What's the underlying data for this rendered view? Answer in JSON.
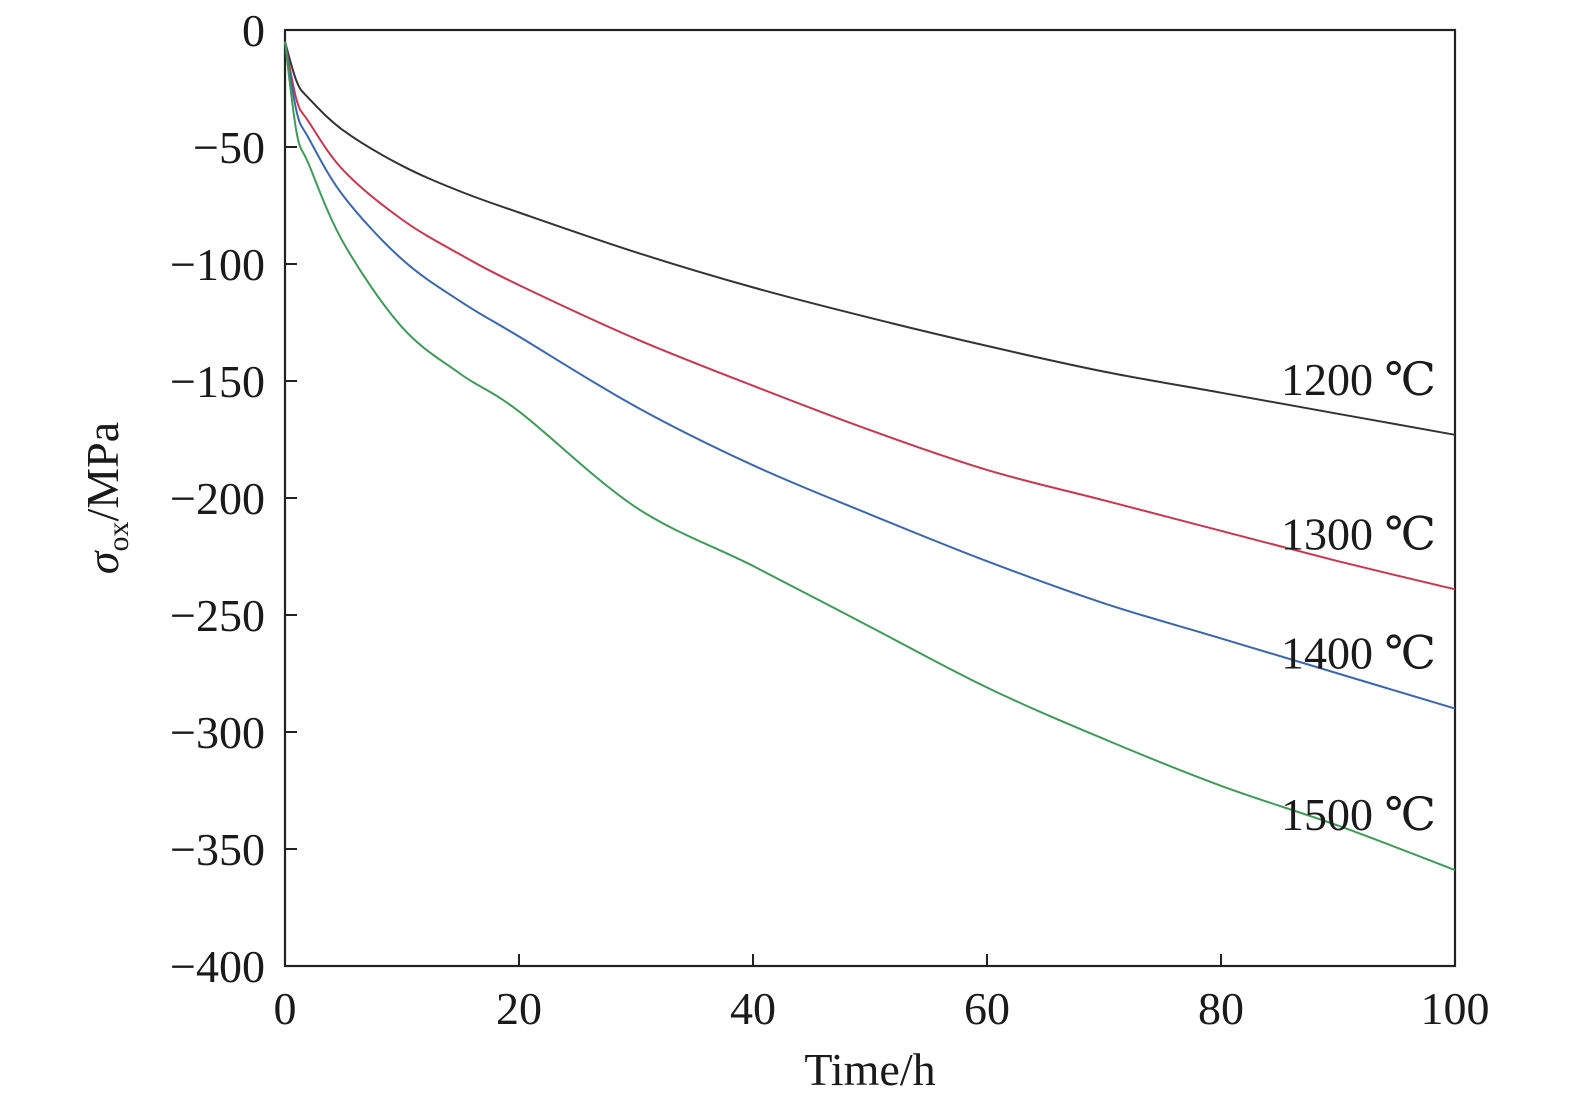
{
  "chart_data": {
    "type": "line",
    "xlabel": "Time/h",
    "ylabel_main": "σ",
    "ylabel_sub": "ox",
    "ylabel_tail": "/MPa",
    "xlim": [
      0,
      100
    ],
    "ylim": [
      -400,
      0
    ],
    "xticks": [
      0,
      20,
      40,
      60,
      80,
      100
    ],
    "yticks": [
      0,
      -50,
      -100,
      -150,
      -200,
      -250,
      -300,
      -350,
      -400
    ],
    "xtick_labels": [
      "0",
      "20",
      "40",
      "60",
      "80",
      "100"
    ],
    "ytick_labels": [
      "0",
      "−50",
      "−100",
      "−150",
      "−200",
      "−250",
      "−300",
      "−350",
      "−400"
    ],
    "grid": false,
    "x": [
      0,
      1,
      2,
      5,
      10,
      15,
      20,
      30,
      40,
      50,
      60,
      70,
      80,
      90,
      100
    ],
    "series": [
      {
        "name": "1200 ℃",
        "color": "#333333",
        "values": [
          -5,
          -22,
          -29,
          -43,
          -58,
          -69,
          -78,
          -95,
          -110,
          -123,
          -135,
          -146,
          -155,
          -164,
          -173
        ]
      },
      {
        "name": "1300 ℃",
        "color": "#c8364f",
        "values": [
          -5,
          -30,
          -39,
          -60,
          -81,
          -96,
          -109,
          -132,
          -152,
          -171,
          -188,
          -201,
          -214,
          -227,
          -239
        ]
      },
      {
        "name": "1400 ℃",
        "color": "#3a66b0",
        "values": [
          -5,
          -35,
          -46,
          -71,
          -98,
          -116,
          -131,
          -161,
          -186,
          -207,
          -227,
          -245,
          -260,
          -275,
          -290
        ]
      },
      {
        "name": "1500 ℃",
        "color": "#3e9b57",
        "values": [
          -5,
          -44,
          -57,
          -91,
          -127,
          -147,
          -163,
          -204,
          -229,
          -255,
          -281,
          -303,
          -323,
          -340,
          -359
        ]
      }
    ]
  }
}
